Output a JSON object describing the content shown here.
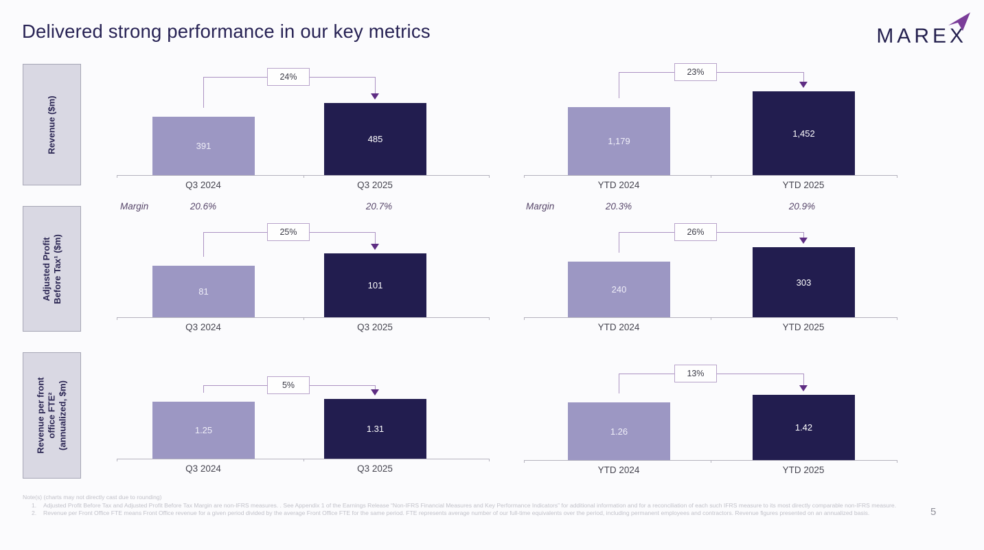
{
  "slide": {
    "title": "Delivered strong performance in our key metrics",
    "brand": "MAREX",
    "page_number": "5"
  },
  "metric_labels": [
    {
      "id": "revenue",
      "lines": [
        "Revenue ($m)"
      ]
    },
    {
      "id": "adjusted-pbt",
      "lines": [
        "Adjusted Profit",
        "Before Tax¹ ($m)"
      ]
    },
    {
      "id": "revenue-per-fte",
      "lines": [
        "Revenue per front",
        "office FTE²",
        "(annualized, $m)"
      ]
    }
  ],
  "chart_data": [
    {
      "type": "bar",
      "metric": "Revenue ($m)",
      "period": "quarterly",
      "categories": [
        "Q3 2024",
        "Q3 2025"
      ],
      "values": [
        391,
        485
      ],
      "value_labels": [
        "391",
        "485"
      ],
      "change": "24%"
    },
    {
      "type": "bar",
      "metric": "Revenue ($m)",
      "period": "year-to-date",
      "categories": [
        "YTD 2024",
        "YTD 2025"
      ],
      "values": [
        1179,
        1452
      ],
      "value_labels": [
        "1,179",
        "1,452"
      ],
      "change": "23%"
    },
    {
      "type": "bar",
      "metric": "Adjusted Profit Before Tax ($m)",
      "period": "quarterly",
      "categories": [
        "Q3 2024",
        "Q3 2025"
      ],
      "values": [
        81,
        101
      ],
      "value_labels": [
        "81",
        "101"
      ],
      "change": "25%"
    },
    {
      "type": "bar",
      "metric": "Adjusted Profit Before Tax ($m)",
      "period": "year-to-date",
      "categories": [
        "YTD 2024",
        "YTD 2025"
      ],
      "values": [
        240,
        303
      ],
      "value_labels": [
        "240",
        "303"
      ],
      "change": "26%"
    },
    {
      "type": "bar",
      "metric": "Revenue per front office FTE (annualized, $m)",
      "period": "quarterly",
      "categories": [
        "Q3 2024",
        "Q3 2025"
      ],
      "values": [
        1.25,
        1.31
      ],
      "value_labels": [
        "1.25",
        "1.31"
      ],
      "change": "5%"
    },
    {
      "type": "bar",
      "metric": "Revenue per front office FTE (annualized, $m)",
      "period": "year-to-date",
      "categories": [
        "YTD 2024",
        "YTD 2025"
      ],
      "values": [
        1.26,
        1.42
      ],
      "value_labels": [
        "1.26",
        "1.42"
      ],
      "change": "13%"
    }
  ],
  "margin_rows": [
    {
      "label": "Margin",
      "values": [
        "20.6%",
        "20.7%"
      ]
    },
    {
      "label": "Margin",
      "values": [
        "20.3%",
        "20.9%"
      ]
    }
  ],
  "footnotes": {
    "note": "Note(s) (charts may not directly cast due to rounding)",
    "items": [
      {
        "num": "1.",
        "text": "Adjusted Profit Before Tax and Adjusted Profit Before Tax Margin are non-IFRS measures. . See Appendix 1 of the Earnings Release “Non-IFRS Financial Measures and Key Performance Indicators” for additional information and for a reconciliation of each such IFRS measure to its most directly comparable non-IFRS measure."
      },
      {
        "num": "2.",
        "text": "Revenue per Front Office FTE means Front Office revenue for a given period divided by the average Front Office FTE for the same period. FTE represents average number of our full-time equivalents over the period, including permanent employees and contractors. Revenue figures presented on an annualized basis."
      }
    ]
  },
  "colors": {
    "bar_prior": "#9c97c3",
    "bar_current": "#221d4f",
    "accent_purple": "#5e2d83",
    "connector": "#ab91c2",
    "title": "#272254",
    "margin_text": "#564569",
    "logo_dart": "#7b3d99"
  }
}
